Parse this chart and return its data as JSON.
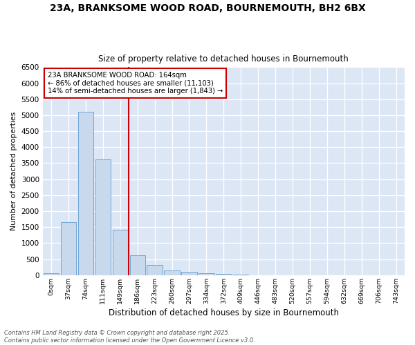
{
  "title": "23A, BRANKSOME WOOD ROAD, BOURNEMOUTH, BH2 6BX",
  "subtitle": "Size of property relative to detached houses in Bournemouth",
  "xlabel": "Distribution of detached houses by size in Bournemouth",
  "ylabel": "Number of detached properties",
  "bar_color": "#c8d9ee",
  "bar_edge_color": "#6fa8d4",
  "bg_color": "#dce6f4",
  "grid_color": "#ffffff",
  "fig_bg_color": "#ffffff",
  "categories": [
    "0sqm",
    "37sqm",
    "74sqm",
    "111sqm",
    "149sqm",
    "186sqm",
    "223sqm",
    "260sqm",
    "297sqm",
    "334sqm",
    "372sqm",
    "409sqm",
    "446sqm",
    "483sqm",
    "520sqm",
    "557sqm",
    "594sqm",
    "632sqm",
    "669sqm",
    "706sqm",
    "743sqm"
  ],
  "values": [
    50,
    1650,
    5100,
    3620,
    1420,
    620,
    310,
    155,
    110,
    65,
    30,
    10,
    5,
    2,
    1,
    1,
    0,
    0,
    0,
    0,
    0
  ],
  "ylim": [
    0,
    6500
  ],
  "yticks": [
    0,
    500,
    1000,
    1500,
    2000,
    2500,
    3000,
    3500,
    4000,
    4500,
    5000,
    5500,
    6000,
    6500
  ],
  "property_line_color": "#cc0000",
  "property_bin_index": 4,
  "annotation_text": "23A BRANKSOME WOOD ROAD: 164sqm\n← 86% of detached houses are smaller (11,103)\n14% of semi-detached houses are larger (1,843) →",
  "annotation_box_color": "#ffffff",
  "annotation_box_edge_color": "#cc0000",
  "footer_line1": "Contains HM Land Registry data © Crown copyright and database right 2025.",
  "footer_line2": "Contains public sector information licensed under the Open Government Licence v3.0."
}
